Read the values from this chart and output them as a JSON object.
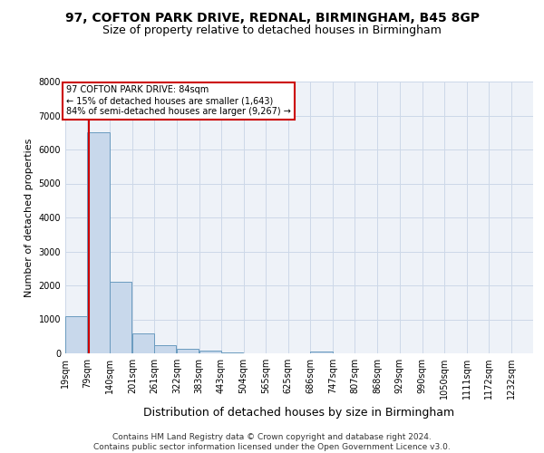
{
  "title": "97, COFTON PARK DRIVE, REDNAL, BIRMINGHAM, B45 8GP",
  "subtitle": "Size of property relative to detached houses in Birmingham",
  "xlabel": "Distribution of detached houses by size in Birmingham",
  "ylabel": "Number of detached properties",
  "bin_edges": [
    19,
    79,
    140,
    201,
    261,
    322,
    383,
    443,
    504,
    565,
    625,
    686,
    747,
    807,
    868,
    929,
    990,
    1050,
    1111,
    1172,
    1232
  ],
  "bar_heights": [
    1100,
    6500,
    2100,
    600,
    250,
    130,
    70,
    40,
    5,
    2,
    1,
    50,
    2,
    1,
    0,
    0,
    0,
    0,
    0,
    0
  ],
  "bar_color": "#c8d8eb",
  "bar_edge_color": "#6a9bbf",
  "property_size": 84,
  "annotation_line1": "97 COFTON PARK DRIVE: 84sqm",
  "annotation_line2": "← 15% of detached houses are smaller (1,643)",
  "annotation_line3": "84% of semi-detached houses are larger (9,267) →",
  "annotation_box_color": "#cc0000",
  "ylim": [
    0,
    8000
  ],
  "yticks": [
    0,
    1000,
    2000,
    3000,
    4000,
    5000,
    6000,
    7000,
    8000
  ],
  "grid_color": "#ccd8e8",
  "background_color": "#eef2f8",
  "footer_text": "Contains HM Land Registry data © Crown copyright and database right 2024.\nContains public sector information licensed under the Open Government Licence v3.0.",
  "title_fontsize": 10,
  "subtitle_fontsize": 9,
  "tick_label_fontsize": 7,
  "ylabel_fontsize": 8,
  "xlabel_fontsize": 9,
  "footer_fontsize": 6.5
}
